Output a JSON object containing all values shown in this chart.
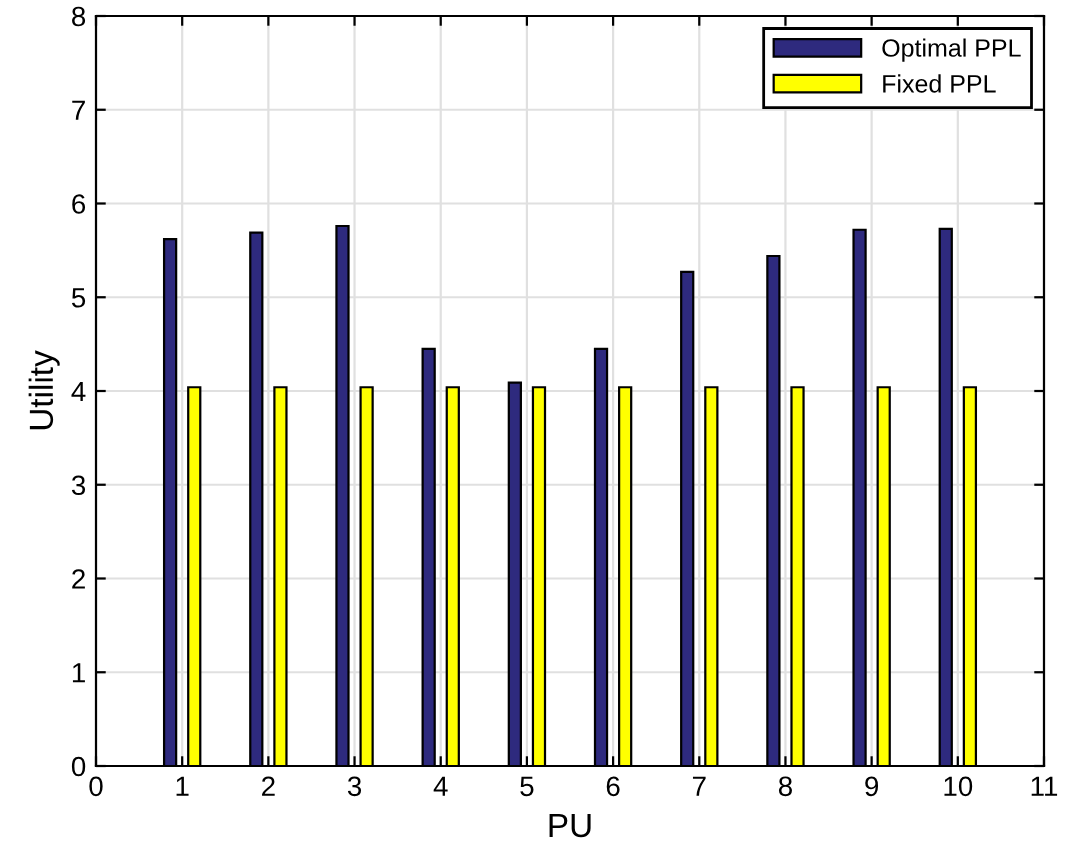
{
  "chart_data": {
    "type": "bar",
    "xlabel": "PU",
    "ylabel": "Utility",
    "x": [
      1,
      2,
      3,
      4,
      5,
      6,
      7,
      8,
      9,
      10
    ],
    "series": [
      {
        "name": "Optimal PPL",
        "color": "#2e2a7e",
        "values": [
          5.62,
          5.69,
          5.76,
          4.45,
          4.09,
          4.45,
          5.27,
          5.44,
          5.72,
          5.73
        ]
      },
      {
        "name": "Fixed PPL",
        "color": "#ffff00",
        "values": [
          4.04,
          4.04,
          4.04,
          4.04,
          4.04,
          4.04,
          4.04,
          4.04,
          4.04,
          4.04
        ]
      }
    ],
    "xlim": [
      0,
      11
    ],
    "xticks": [
      0,
      1,
      2,
      3,
      4,
      5,
      6,
      7,
      8,
      9,
      10,
      11
    ],
    "ylim": [
      0,
      8
    ],
    "yticks": [
      0,
      1,
      2,
      3,
      4,
      5,
      6,
      7,
      8
    ],
    "grid": true,
    "legend": "top right"
  }
}
